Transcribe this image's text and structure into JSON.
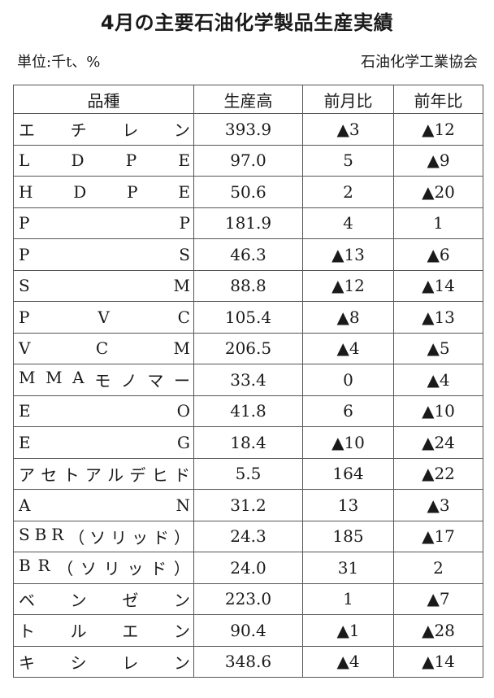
{
  "title": "4月の主要石油化学製品生産実績",
  "unit": "単位:千t、%",
  "source": "石油化学工業協会",
  "table": {
    "headers": [
      "品種",
      "生産高",
      "前月比",
      "前年比"
    ],
    "rows": [
      {
        "name": "エチレン",
        "production": "393.9",
        "mom": "▲3",
        "yoy": "▲12"
      },
      {
        "name": "LDPE",
        "production": "97.0",
        "mom": "5",
        "yoy": "▲9"
      },
      {
        "name": "HDPE",
        "production": "50.6",
        "mom": "2",
        "yoy": "▲20"
      },
      {
        "name": "PP",
        "production": "181.9",
        "mom": "4",
        "yoy": "1"
      },
      {
        "name": "PS",
        "production": "46.3",
        "mom": "▲13",
        "yoy": "▲6"
      },
      {
        "name": "SM",
        "production": "88.8",
        "mom": "▲12",
        "yoy": "▲14"
      },
      {
        "name": "PVC",
        "production": "105.4",
        "mom": "▲8",
        "yoy": "▲13"
      },
      {
        "name": "VCM",
        "production": "206.5",
        "mom": "▲4",
        "yoy": "▲5"
      },
      {
        "name": "MMAモノマー",
        "production": "33.4",
        "mom": "0",
        "yoy": "▲4"
      },
      {
        "name": "EO",
        "production": "41.8",
        "mom": "6",
        "yoy": "▲10"
      },
      {
        "name": "EG",
        "production": "18.4",
        "mom": "▲10",
        "yoy": "▲24"
      },
      {
        "name": "アセトアルデヒド",
        "production": "5.5",
        "mom": "164",
        "yoy": "▲22"
      },
      {
        "name": "AN",
        "production": "31.2",
        "mom": "13",
        "yoy": "▲3"
      },
      {
        "name": "SBR（ソリッド）",
        "production": "24.3",
        "mom": "185",
        "yoy": "▲17"
      },
      {
        "name": "BR（ソリッド）",
        "production": "24.0",
        "mom": "31",
        "yoy": "2"
      },
      {
        "name": "ベンゼン",
        "production": "223.0",
        "mom": "1",
        "yoy": "▲7"
      },
      {
        "name": "トルエン",
        "production": "90.4",
        "mom": "▲1",
        "yoy": "▲28"
      },
      {
        "name": "キシレン",
        "production": "348.6",
        "mom": "▲4",
        "yoy": "▲14"
      }
    ]
  }
}
